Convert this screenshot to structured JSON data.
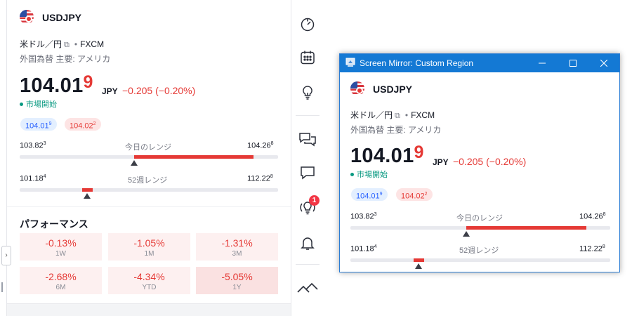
{
  "main_panel": {
    "symbol": "USDJPY",
    "description": "米ドル／円",
    "source_separator": "•",
    "source": "FXCM",
    "category": "外国為替 主要: アメリカ",
    "price_main": "104.01",
    "price_tail": "9",
    "currency": "JPY",
    "change": "−0.205 (−0.20%)",
    "market_status": "市場開始",
    "bid_main": "104.01",
    "bid_tail": "9",
    "ask_main": "104.02",
    "ask_tail": "2",
    "day_range": {
      "low_main": "103.82",
      "low_tail": "3",
      "label": "今日のレンジ",
      "high_main": "104.26",
      "high_tail": "8"
    },
    "week52_range": {
      "low_main": "101.18",
      "low_tail": "4",
      "label": "52週レンジ",
      "high_main": "112.22",
      "high_tail": "8"
    },
    "performance_title": "パフォーマンス",
    "performance": [
      {
        "value": "-0.13%",
        "period": "1W"
      },
      {
        "value": "-1.05%",
        "period": "1M"
      },
      {
        "value": "-1.31%",
        "period": "3M"
      },
      {
        "value": "-2.68%",
        "period": "6M"
      },
      {
        "value": "-4.34%",
        "period": "YTD"
      },
      {
        "value": "-5.05%",
        "period": "1Y"
      }
    ],
    "collapse_glyph": "›"
  },
  "toolbar": {
    "icons": [
      "dashboard-clock-icon",
      "calendar-icon",
      "lightbulb-icon",
      "chat-bubbles-icon",
      "chat-bubble-icon",
      "broadcast-lightbulb-icon",
      "bell-icon",
      "chevron-up-double-icon"
    ],
    "notification_count": "1"
  },
  "mirror_window": {
    "title": "Screen Mirror: Custom Region",
    "controls": [
      "minimize",
      "maximize",
      "close"
    ]
  },
  "colors": {
    "accent_red": "#e53935",
    "accent_blue": "#2962ff",
    "status_green": "#089981",
    "titlebar_blue": "#1479d4"
  }
}
